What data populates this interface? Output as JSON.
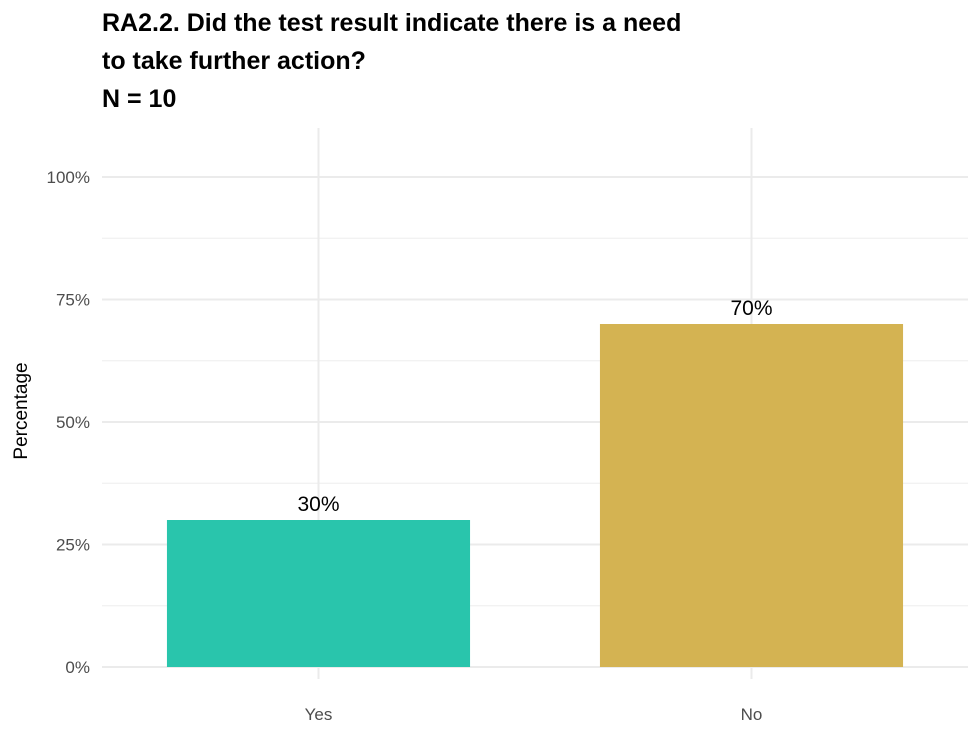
{
  "chart_data": {
    "type": "bar",
    "title_lines": [
      "RA2.2. Did the test result indicate there is a need",
      "to take further action?",
      "N = 10"
    ],
    "xlabel": "",
    "ylabel": "Percentage",
    "categories": [
      "Yes",
      "No"
    ],
    "values": [
      30,
      70
    ],
    "value_labels": [
      "30%",
      "70%"
    ],
    "colors": [
      "#29C5AC",
      "#D4B352"
    ],
    "ylim": [
      0,
      110
    ],
    "yticks": [
      0,
      25,
      50,
      75,
      100
    ],
    "ytick_labels": [
      "0%",
      "25%",
      "50%",
      "75%",
      "100%"
    ],
    "grid": true,
    "legend": "none"
  }
}
